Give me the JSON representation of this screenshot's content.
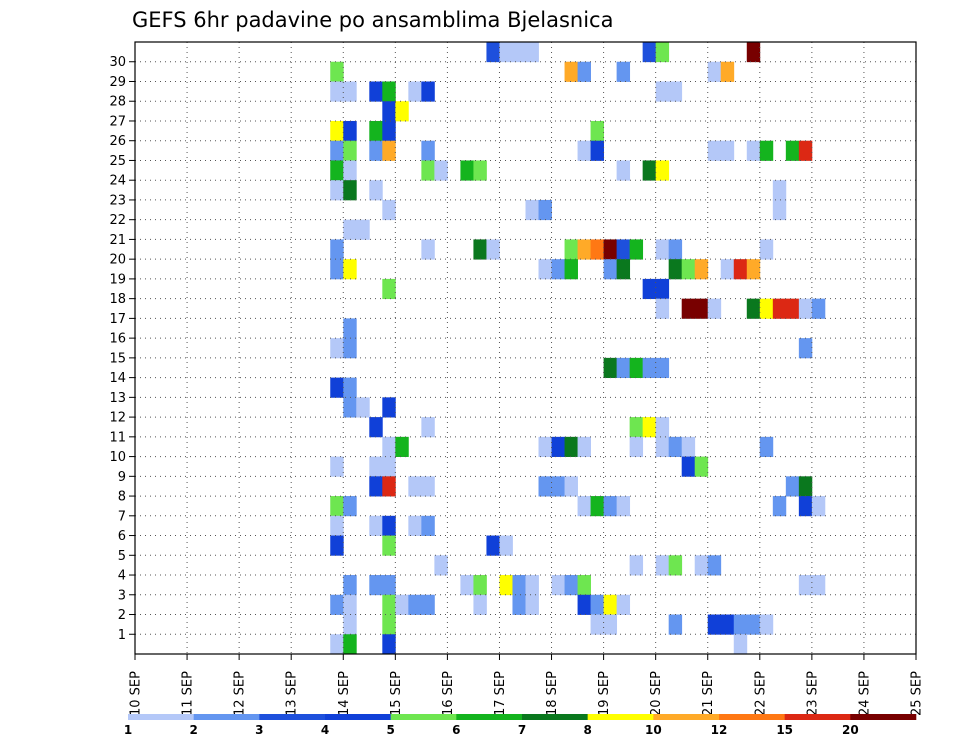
{
  "chart_data": {
    "type": "heatmap",
    "title": "GEFS 6hr padavine po ansamblima Bjelasnica",
    "xlabel": "",
    "ylabel": "",
    "x_tick_labels": [
      "10 SEP",
      "11 SEP",
      "12 SEP",
      "13 SEP",
      "14 SEP",
      "15 SEP",
      "16 SEP",
      "17 SEP",
      "18 SEP",
      "19 SEP",
      "20 SEP",
      "21 SEP",
      "22 SEP",
      "23 SEP",
      "24 SEP",
      "25 SEP"
    ],
    "y_tick_labels": [
      "1",
      "2",
      "3",
      "4",
      "5",
      "6",
      "7",
      "8",
      "9",
      "10",
      "11",
      "12",
      "13",
      "14",
      "15",
      "16",
      "17",
      "18",
      "19",
      "20",
      "21",
      "22",
      "23",
      "24",
      "25",
      "26",
      "27",
      "28",
      "29",
      "30"
    ],
    "grid": true,
    "legend": {
      "placement": "bottom",
      "labels": [
        "1",
        "2",
        "3",
        "4",
        "5",
        "6",
        "7",
        "8",
        "10",
        "12",
        "15",
        "20"
      ],
      "colors": [
        "#b4c8f8",
        "#6496f0",
        "#1e50dc",
        "#1040d8",
        "#6ee650",
        "#14b41e",
        "#0a781e",
        "#ffff00",
        "#ffaa28",
        "#ff7814",
        "#dc2814",
        "#780000"
      ]
    },
    "cell_x_unit": "6-hour step from 10 SEP 00UTC",
    "cells": [
      [
        27,
        30,
        2
      ],
      [
        28,
        30,
        0
      ],
      [
        29,
        30,
        0
      ],
      [
        30,
        30,
        0
      ],
      [
        39,
        30,
        2
      ],
      [
        40,
        30,
        4
      ],
      [
        47,
        30,
        11
      ],
      [
        15,
        29,
        4
      ],
      [
        33,
        29,
        8
      ],
      [
        34,
        29,
        1
      ],
      [
        37,
        29,
        1
      ],
      [
        44,
        29,
        0
      ],
      [
        45,
        29,
        8
      ],
      [
        15,
        28,
        0
      ],
      [
        16,
        28,
        0
      ],
      [
        18,
        28,
        3
      ],
      [
        19,
        28,
        5
      ],
      [
        21,
        28,
        0
      ],
      [
        22,
        28,
        3
      ],
      [
        40,
        28,
        0
      ],
      [
        41,
        28,
        0
      ],
      [
        19,
        27,
        3
      ],
      [
        20,
        27,
        7
      ],
      [
        15,
        26,
        7
      ],
      [
        16,
        26,
        3
      ],
      [
        18,
        26,
        5
      ],
      [
        19,
        26,
        3
      ],
      [
        35,
        26,
        4
      ],
      [
        15,
        25,
        1
      ],
      [
        16,
        25,
        4
      ],
      [
        18,
        25,
        1
      ],
      [
        19,
        25,
        8
      ],
      [
        22,
        25,
        1
      ],
      [
        34,
        25,
        0
      ],
      [
        35,
        25,
        3
      ],
      [
        44,
        25,
        0
      ],
      [
        45,
        25,
        0
      ],
      [
        47,
        25,
        0
      ],
      [
        48,
        25,
        5
      ],
      [
        50,
        25,
        5
      ],
      [
        51,
        25,
        10
      ],
      [
        15,
        24,
        5
      ],
      [
        16,
        24,
        0
      ],
      [
        22,
        24,
        4
      ],
      [
        23,
        24,
        0
      ],
      [
        25,
        24,
        5
      ],
      [
        26,
        24,
        4
      ],
      [
        37,
        24,
        0
      ],
      [
        39,
        24,
        6
      ],
      [
        40,
        24,
        7
      ],
      [
        15,
        23,
        0
      ],
      [
        16,
        23,
        6
      ],
      [
        18,
        23,
        0
      ],
      [
        49,
        23,
        0
      ],
      [
        19,
        22,
        0
      ],
      [
        30,
        22,
        0
      ],
      [
        31,
        22,
        1
      ],
      [
        49,
        22,
        0
      ],
      [
        16,
        21,
        0
      ],
      [
        17,
        21,
        0
      ],
      [
        15,
        20,
        1
      ],
      [
        22,
        20,
        0
      ],
      [
        26,
        20,
        6
      ],
      [
        27,
        20,
        0
      ],
      [
        33,
        20,
        4
      ],
      [
        34,
        20,
        8
      ],
      [
        35,
        20,
        9
      ],
      [
        36,
        20,
        11
      ],
      [
        37,
        20,
        2
      ],
      [
        38,
        20,
        5
      ],
      [
        40,
        20,
        0
      ],
      [
        41,
        20,
        1
      ],
      [
        48,
        20,
        0
      ],
      [
        15,
        19,
        1
      ],
      [
        16,
        19,
        7
      ],
      [
        31,
        19,
        0
      ],
      [
        32,
        19,
        1
      ],
      [
        33,
        19,
        5
      ],
      [
        36,
        19,
        1
      ],
      [
        37,
        19,
        6
      ],
      [
        41,
        19,
        6
      ],
      [
        42,
        19,
        4
      ],
      [
        43,
        19,
        8
      ],
      [
        45,
        19,
        0
      ],
      [
        46,
        19,
        10
      ],
      [
        47,
        19,
        8
      ],
      [
        19,
        18,
        4
      ],
      [
        39,
        18,
        3
      ],
      [
        40,
        18,
        3
      ],
      [
        40,
        17,
        0
      ],
      [
        42,
        17,
        11
      ],
      [
        43,
        17,
        11
      ],
      [
        44,
        17,
        0
      ],
      [
        47,
        17,
        6
      ],
      [
        48,
        17,
        7
      ],
      [
        49,
        17,
        10
      ],
      [
        50,
        17,
        10
      ],
      [
        51,
        17,
        0
      ],
      [
        52,
        17,
        1
      ],
      [
        16,
        16,
        1
      ],
      [
        15,
        15,
        0
      ],
      [
        16,
        15,
        1
      ],
      [
        51,
        15,
        1
      ],
      [
        36,
        14,
        6
      ],
      [
        37,
        14,
        1
      ],
      [
        38,
        14,
        5
      ],
      [
        39,
        14,
        1
      ],
      [
        40,
        14,
        1
      ],
      [
        15,
        13,
        3
      ],
      [
        16,
        13,
        1
      ],
      [
        16,
        12,
        1
      ],
      [
        17,
        12,
        0
      ],
      [
        19,
        12,
        3
      ],
      [
        18,
        11,
        3
      ],
      [
        22,
        11,
        0
      ],
      [
        38,
        11,
        4
      ],
      [
        39,
        11,
        7
      ],
      [
        40,
        11,
        0
      ],
      [
        19,
        10,
        0
      ],
      [
        20,
        10,
        5
      ],
      [
        31,
        10,
        0
      ],
      [
        32,
        10,
        3
      ],
      [
        33,
        10,
        6
      ],
      [
        34,
        10,
        0
      ],
      [
        38,
        10,
        0
      ],
      [
        40,
        10,
        0
      ],
      [
        41,
        10,
        1
      ],
      [
        42,
        10,
        0
      ],
      [
        48,
        10,
        1
      ],
      [
        15,
        9,
        0
      ],
      [
        18,
        9,
        0
      ],
      [
        19,
        9,
        0
      ],
      [
        42,
        9,
        3
      ],
      [
        43,
        9,
        4
      ],
      [
        18,
        8,
        3
      ],
      [
        19,
        8,
        10
      ],
      [
        21,
        8,
        0
      ],
      [
        22,
        8,
        0
      ],
      [
        31,
        8,
        1
      ],
      [
        32,
        8,
        1
      ],
      [
        33,
        8,
        0
      ],
      [
        50,
        8,
        1
      ],
      [
        51,
        8,
        6
      ],
      [
        15,
        7,
        4
      ],
      [
        16,
        7,
        1
      ],
      [
        34,
        7,
        0
      ],
      [
        35,
        7,
        5
      ],
      [
        36,
        7,
        1
      ],
      [
        37,
        7,
        0
      ],
      [
        49,
        7,
        1
      ],
      [
        51,
        7,
        3
      ],
      [
        52,
        7,
        0
      ],
      [
        15,
        6,
        0
      ],
      [
        18,
        6,
        0
      ],
      [
        19,
        6,
        3
      ],
      [
        21,
        6,
        0
      ],
      [
        22,
        6,
        1
      ],
      [
        15,
        5,
        3
      ],
      [
        19,
        5,
        4
      ],
      [
        27,
        5,
        3
      ],
      [
        28,
        5,
        0
      ],
      [
        23,
        4,
        0
      ],
      [
        38,
        4,
        0
      ],
      [
        40,
        4,
        0
      ],
      [
        41,
        4,
        4
      ],
      [
        43,
        4,
        0
      ],
      [
        44,
        4,
        1
      ],
      [
        16,
        3,
        1
      ],
      [
        18,
        3,
        1
      ],
      [
        19,
        3,
        1
      ],
      [
        25,
        3,
        0
      ],
      [
        26,
        3,
        4
      ],
      [
        28,
        3,
        7
      ],
      [
        29,
        3,
        1
      ],
      [
        30,
        3,
        0
      ],
      [
        32,
        3,
        0
      ],
      [
        33,
        3,
        1
      ],
      [
        34,
        3,
        4
      ],
      [
        51,
        3,
        0
      ],
      [
        52,
        3,
        0
      ],
      [
        15,
        2,
        1
      ],
      [
        16,
        2,
        0
      ],
      [
        19,
        2,
        4
      ],
      [
        20,
        2,
        0
      ],
      [
        21,
        2,
        1
      ],
      [
        22,
        2,
        1
      ],
      [
        26,
        2,
        0
      ],
      [
        29,
        2,
        1
      ],
      [
        30,
        2,
        0
      ],
      [
        34,
        2,
        3
      ],
      [
        35,
        2,
        1
      ],
      [
        36,
        2,
        7
      ],
      [
        37,
        2,
        0
      ],
      [
        16,
        1,
        0
      ],
      [
        19,
        1,
        4
      ],
      [
        35,
        1,
        0
      ],
      [
        36,
        1,
        0
      ],
      [
        41,
        1,
        1
      ],
      [
        44,
        1,
        3
      ],
      [
        45,
        1,
        3
      ],
      [
        46,
        1,
        1
      ],
      [
        47,
        1,
        1
      ],
      [
        48,
        1,
        0
      ],
      [
        15,
        0,
        0
      ],
      [
        16,
        0,
        5
      ],
      [
        19,
        0,
        3
      ],
      [
        46,
        0,
        0
      ]
    ]
  }
}
